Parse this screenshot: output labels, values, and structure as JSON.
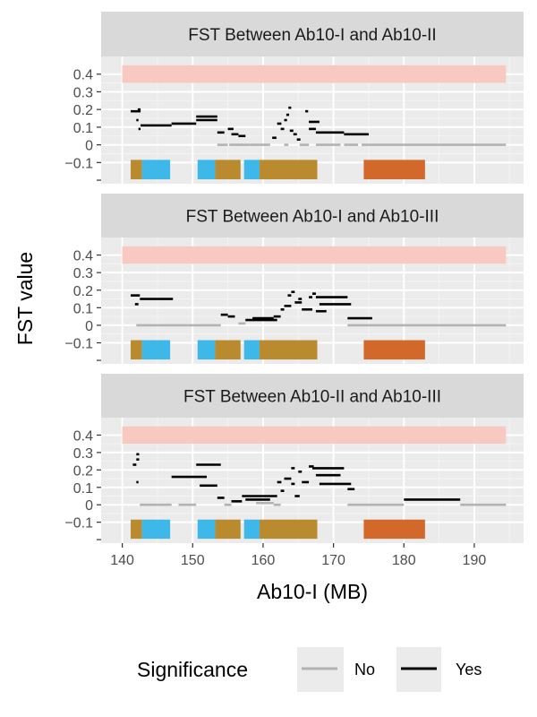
{
  "chart_data": {
    "type": "line",
    "facet_titles": [
      "FST Between Ab10-I and Ab10-II",
      "FST Between Ab10-I and Ab10-III",
      "FST Between Ab10-II and Ab10-III"
    ],
    "xlabel": "Ab10-I (MB)",
    "ylabel": "FST value",
    "xlim": [
      137,
      197
    ],
    "ylim": [
      -0.22,
      0.5
    ],
    "x_ticks": [
      140,
      150,
      160,
      170,
      180,
      190
    ],
    "y_ticks": [
      0.4,
      0.3,
      0.2,
      0.1,
      0,
      -0.1
    ],
    "y_tick_labels": [
      "0.4",
      "0.3",
      "0.2",
      "0.1",
      "0",
      "−0.1"
    ],
    "threshold_band": {
      "x": [
        140,
        194.5
      ],
      "y": [
        0.35,
        0.45
      ],
      "color": "#f8c9c1"
    },
    "region_blocks": [
      {
        "x": [
          141.2,
          142.8
        ],
        "color": "#b98a2e"
      },
      {
        "x": [
          142.8,
          146.8
        ],
        "color": "#3db8e8"
      },
      {
        "x": [
          150.7,
          153.2
        ],
        "color": "#3db8e8"
      },
      {
        "x": [
          153.2,
          156.8
        ],
        "color": "#b98a2e"
      },
      {
        "x": [
          157.3,
          159.5
        ],
        "color": "#3db8e8"
      },
      {
        "x": [
          159.5,
          167.7
        ],
        "color": "#b98a2e"
      },
      {
        "x": [
          174.3,
          183.0
        ],
        "color": "#d2692a"
      }
    ],
    "region_y": [
      -0.195,
      -0.085
    ],
    "legend": {
      "title": "Significance",
      "position": "bottom",
      "entries": [
        {
          "label": "No",
          "color": "#b3b3b3"
        },
        {
          "label": "Yes",
          "color": "#000000"
        }
      ]
    },
    "series": [
      {
        "panel": 0,
        "segments": [
          {
            "x": [
              141.2,
              142.6
            ],
            "y": 0.19,
            "sig": "Yes"
          },
          {
            "x": [
              142.2,
              142.6
            ],
            "y": 0.2,
            "sig": "Yes"
          },
          {
            "x": [
              142.0,
              142.3
            ],
            "y": 0.14,
            "sig": "Yes"
          },
          {
            "x": [
              142.3,
              142.6
            ],
            "y": 0.09,
            "sig": "Yes"
          },
          {
            "x": [
              142.6,
              147.0
            ],
            "y": 0.11,
            "sig": "Yes"
          },
          {
            "x": [
              147.0,
              150.5
            ],
            "y": 0.12,
            "sig": "Yes"
          },
          {
            "x": [
              150.5,
              153.5
            ],
            "y": 0.16,
            "sig": "Yes"
          },
          {
            "x": [
              150.5,
              153.5
            ],
            "y": 0.14,
            "sig": "Yes"
          },
          {
            "x": [
              153.5,
              154.5
            ],
            "y": 0.07,
            "sig": "Yes"
          },
          {
            "x": [
              155.0,
              155.8
            ],
            "y": 0.09,
            "sig": "Yes"
          },
          {
            "x": [
              155.5,
              156.5
            ],
            "y": 0.06,
            "sig": "Yes"
          },
          {
            "x": [
              156.5,
              157.5
            ],
            "y": 0.05,
            "sig": "Yes"
          },
          {
            "x": [
              153.5,
              155.0
            ],
            "y": 0.0,
            "sig": "No"
          },
          {
            "x": [
              155.2,
              158.2
            ],
            "y": 0.0,
            "sig": "No"
          },
          {
            "x": [
              158.2,
              161.0
            ],
            "y": 0.0,
            "sig": "No"
          },
          {
            "x": [
              161.3,
              161.9
            ],
            "y": 0.04,
            "sig": "Yes"
          },
          {
            "x": [
              162.0,
              162.6
            ],
            "y": 0.12,
            "sig": "Yes"
          },
          {
            "x": [
              162.5,
              163.0
            ],
            "y": 0.09,
            "sig": "Yes"
          },
          {
            "x": [
              163.0,
              163.4
            ],
            "y": 0.14,
            "sig": "Yes"
          },
          {
            "x": [
              163.3,
              163.7
            ],
            "y": 0.17,
            "sig": "Yes"
          },
          {
            "x": [
              163.6,
              164.0
            ],
            "y": 0.21,
            "sig": "Yes"
          },
          {
            "x": [
              163.8,
              164.3
            ],
            "y": 0.08,
            "sig": "Yes"
          },
          {
            "x": [
              164.3,
              164.8
            ],
            "y": 0.06,
            "sig": "Yes"
          },
          {
            "x": [
              164.8,
              165.3
            ],
            "y": 0.03,
            "sig": "Yes"
          },
          {
            "x": [
              163.0,
              163.6
            ],
            "y": 0.0,
            "sig": "No"
          },
          {
            "x": [
              165.2,
              166.5
            ],
            "y": 0.0,
            "sig": "No"
          },
          {
            "x": [
              166.0,
              166.4
            ],
            "y": 0.19,
            "sig": "Yes"
          },
          {
            "x": [
              166.5,
              167.5
            ],
            "y": 0.09,
            "sig": "Yes"
          },
          {
            "x": [
              166.5,
              168.0
            ],
            "y": 0.13,
            "sig": "Yes"
          },
          {
            "x": [
              167.5,
              171.5
            ],
            "y": 0.07,
            "sig": "Yes"
          },
          {
            "x": [
              171.5,
              175.0
            ],
            "y": 0.06,
            "sig": "Yes"
          },
          {
            "x": [
              167.5,
              171.0
            ],
            "y": 0.0,
            "sig": "No"
          },
          {
            "x": [
              171.5,
              173.5
            ],
            "y": 0.0,
            "sig": "No"
          },
          {
            "x": [
              174.0,
              194.5
            ],
            "y": 0.0,
            "sig": "No"
          }
        ]
      },
      {
        "panel": 1,
        "segments": [
          {
            "x": [
              141.2,
              142.5
            ],
            "y": 0.17,
            "sig": "Yes"
          },
          {
            "x": [
              141.8,
              142.3
            ],
            "y": 0.12,
            "sig": "Yes"
          },
          {
            "x": [
              142.5,
              147.2
            ],
            "y": 0.15,
            "sig": "Yes"
          },
          {
            "x": [
              142.0,
              154.0
            ],
            "y": 0.0,
            "sig": "No"
          },
          {
            "x": [
              154.0,
              155.0
            ],
            "y": 0.06,
            "sig": "Yes"
          },
          {
            "x": [
              155.0,
              156.0
            ],
            "y": 0.05,
            "sig": "Yes"
          },
          {
            "x": [
              156.5,
              157.5
            ],
            "y": 0.01,
            "sig": "No"
          },
          {
            "x": [
              157.5,
              162.0
            ],
            "y": 0.03,
            "sig": "Yes"
          },
          {
            "x": [
              158.5,
              161.5
            ],
            "y": 0.04,
            "sig": "Yes"
          },
          {
            "x": [
              161.5,
              162.5
            ],
            "y": 0.05,
            "sig": "Yes"
          },
          {
            "x": [
              162.5,
              163.0
            ],
            "y": 0.09,
            "sig": "Yes"
          },
          {
            "x": [
              163.0,
              164.0
            ],
            "y": 0.11,
            "sig": "Yes"
          },
          {
            "x": [
              163.5,
              164.0
            ],
            "y": 0.17,
            "sig": "Yes"
          },
          {
            "x": [
              164.0,
              164.5
            ],
            "y": 0.19,
            "sig": "Yes"
          },
          {
            "x": [
              164.5,
              165.5
            ],
            "y": 0.13,
            "sig": "Yes"
          },
          {
            "x": [
              165.0,
              165.5
            ],
            "y": 0.15,
            "sig": "Yes"
          },
          {
            "x": [
              165.5,
              167.0
            ],
            "y": 0.09,
            "sig": "Yes"
          },
          {
            "x": [
              166.5,
              167.0
            ],
            "y": 0.16,
            "sig": "Yes"
          },
          {
            "x": [
              167.0,
              167.5
            ],
            "y": 0.18,
            "sig": "Yes"
          },
          {
            "x": [
              167.5,
              172.0
            ],
            "y": 0.16,
            "sig": "Yes"
          },
          {
            "x": [
              168.0,
              172.5
            ],
            "y": 0.12,
            "sig": "Yes"
          },
          {
            "x": [
              167.5,
              169.0
            ],
            "y": 0.08,
            "sig": "Yes"
          },
          {
            "x": [
              172.0,
              175.5
            ],
            "y": 0.04,
            "sig": "Yes"
          },
          {
            "x": [
              172.0,
              194.5
            ],
            "y": 0.0,
            "sig": "No"
          }
        ]
      },
      {
        "panel": 2,
        "segments": [
          {
            "x": [
              141.5,
              142.0
            ],
            "y": 0.23,
            "sig": "Yes"
          },
          {
            "x": [
              142.0,
              142.4
            ],
            "y": 0.29,
            "sig": "Yes"
          },
          {
            "x": [
              142.0,
              142.4
            ],
            "y": 0.26,
            "sig": "Yes"
          },
          {
            "x": [
              142.0,
              142.3
            ],
            "y": 0.13,
            "sig": "Yes"
          },
          {
            "x": [
              142.5,
              147.0
            ],
            "y": 0.0,
            "sig": "No"
          },
          {
            "x": [
              147.0,
              152.0
            ],
            "y": 0.16,
            "sig": "Yes"
          },
          {
            "x": [
              148.0,
              150.5
            ],
            "y": 0.0,
            "sig": "No"
          },
          {
            "x": [
              150.5,
              154.0
            ],
            "y": 0.23,
            "sig": "Yes"
          },
          {
            "x": [
              151.0,
              153.5
            ],
            "y": 0.11,
            "sig": "Yes"
          },
          {
            "x": [
              153.5,
              154.5
            ],
            "y": 0.04,
            "sig": "Yes"
          },
          {
            "x": [
              154.5,
              155.5
            ],
            "y": 0.0,
            "sig": "No"
          },
          {
            "x": [
              155.5,
              157.0
            ],
            "y": 0.02,
            "sig": "Yes"
          },
          {
            "x": [
              157.0,
              162.0
            ],
            "y": 0.05,
            "sig": "Yes"
          },
          {
            "x": [
              157.5,
              161.0
            ],
            "y": 0.03,
            "sig": "Yes"
          },
          {
            "x": [
              159.0,
              161.5
            ],
            "y": 0.01,
            "sig": "No"
          },
          {
            "x": [
              161.5,
              162.5
            ],
            "y": 0.0,
            "sig": "No"
          },
          {
            "x": [
              162.0,
              162.6
            ],
            "y": 0.13,
            "sig": "Yes"
          },
          {
            "x": [
              162.5,
              163.0
            ],
            "y": 0.08,
            "sig": "Yes"
          },
          {
            "x": [
              163.0,
              164.0
            ],
            "y": 0.15,
            "sig": "Yes"
          },
          {
            "x": [
              164.0,
              164.5
            ],
            "y": 0.21,
            "sig": "Yes"
          },
          {
            "x": [
              164.0,
              164.5
            ],
            "y": 0.12,
            "sig": "Yes"
          },
          {
            "x": [
              164.5,
              165.2
            ],
            "y": 0.05,
            "sig": "Yes"
          },
          {
            "x": [
              165.0,
              165.5
            ],
            "y": 0.19,
            "sig": "Yes"
          },
          {
            "x": [
              165.5,
              166.5
            ],
            "y": 0.13,
            "sig": "Yes"
          },
          {
            "x": [
              166.5,
              167.2
            ],
            "y": 0.22,
            "sig": "Yes"
          },
          {
            "x": [
              167.0,
              171.5
            ],
            "y": 0.21,
            "sig": "Yes"
          },
          {
            "x": [
              167.5,
              171.0
            ],
            "y": 0.17,
            "sig": "Yes"
          },
          {
            "x": [
              168.0,
              172.5
            ],
            "y": 0.12,
            "sig": "Yes"
          },
          {
            "x": [
              172.0,
              173.0
            ],
            "y": 0.09,
            "sig": "Yes"
          },
          {
            "x": [
              172.0,
              180.0
            ],
            "y": 0.0,
            "sig": "No"
          },
          {
            "x": [
              180.0,
              188.0
            ],
            "y": 0.03,
            "sig": "Yes"
          },
          {
            "x": [
              188.0,
              194.5
            ],
            "y": 0.0,
            "sig": "No"
          }
        ]
      }
    ]
  }
}
